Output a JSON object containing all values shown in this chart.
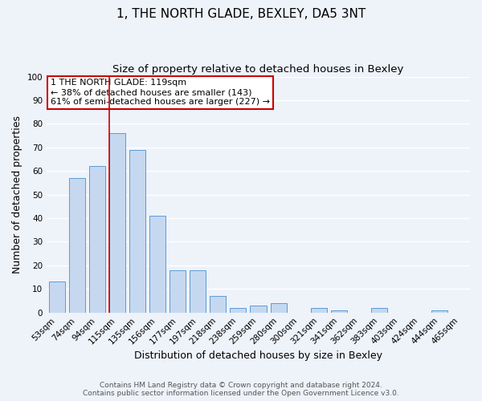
{
  "title": "1, THE NORTH GLADE, BEXLEY, DA5 3NT",
  "subtitle": "Size of property relative to detached houses in Bexley",
  "xlabel": "Distribution of detached houses by size in Bexley",
  "ylabel": "Number of detached properties",
  "categories": [
    "53sqm",
    "74sqm",
    "94sqm",
    "115sqm",
    "135sqm",
    "156sqm",
    "177sqm",
    "197sqm",
    "218sqm",
    "238sqm",
    "259sqm",
    "280sqm",
    "300sqm",
    "321sqm",
    "341sqm",
    "362sqm",
    "383sqm",
    "403sqm",
    "424sqm",
    "444sqm",
    "465sqm"
  ],
  "values": [
    13,
    57,
    62,
    76,
    69,
    41,
    18,
    18,
    7,
    2,
    3,
    4,
    0,
    2,
    1,
    0,
    2,
    0,
    0,
    1,
    0
  ],
  "bar_color": "#c5d8f0",
  "bar_edge_color": "#5b9bd5",
  "ylim": [
    0,
    100
  ],
  "yticks": [
    0,
    10,
    20,
    30,
    40,
    50,
    60,
    70,
    80,
    90,
    100
  ],
  "vline_color": "#cc0000",
  "vline_bar_index": 3,
  "annotation_title": "1 THE NORTH GLADE: 119sqm",
  "annotation_line1": "← 38% of detached houses are smaller (143)",
  "annotation_line2": "61% of semi-detached houses are larger (227) →",
  "annotation_box_color": "#cc0000",
  "footer_line1": "Contains HM Land Registry data © Crown copyright and database right 2024.",
  "footer_line2": "Contains public sector information licensed under the Open Government Licence v3.0.",
  "background_color": "#eef2f9",
  "grid_color": "#ffffff",
  "title_fontsize": 11,
  "subtitle_fontsize": 9.5,
  "label_fontsize": 9,
  "tick_fontsize": 7.5,
  "footer_fontsize": 6.5,
  "annotation_fontsize": 8
}
